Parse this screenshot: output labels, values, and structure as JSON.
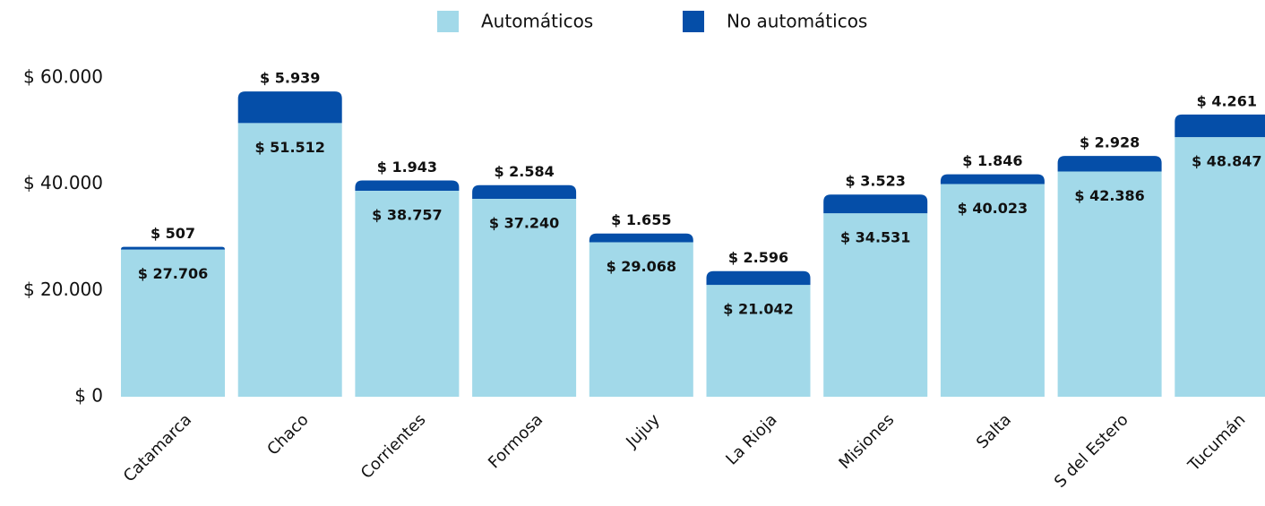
{
  "chart_data": {
    "type": "stacked_bar",
    "categories": [
      "Catamarca",
      "Chaco",
      "Corrientes",
      "Formosa",
      "Jujuy",
      "La Rioja",
      "Misiones",
      "Salta",
      "S del Estero",
      "Tucumán"
    ],
    "series": [
      {
        "name": "Automáticos",
        "color": "#a2d9e9",
        "values": [
          27706,
          51512,
          38757,
          37240,
          29068,
          21042,
          34531,
          40023,
          42386,
          48847
        ],
        "value_labels": [
          "$ 27.706",
          "$ 51.512",
          "$ 38.757",
          "$ 37.240",
          "$ 29.068",
          "$ 21.042",
          "$ 34.531",
          "$ 40.023",
          "$ 42.386",
          "$ 48.847"
        ]
      },
      {
        "name": "No automáticos",
        "color": "#054ea8",
        "values": [
          507,
          5939,
          1943,
          2584,
          1655,
          2596,
          3523,
          1846,
          2928,
          4261
        ],
        "value_labels": [
          "$ 507",
          "$ 5.939",
          "$ 1.943",
          "$ 2.584",
          "$ 1.655",
          "$ 2.596",
          "$ 3.523",
          "$ 1.846",
          "$ 2.928",
          "$ 4.261"
        ]
      }
    ],
    "ylim": [
      0,
      60000
    ],
    "yticks": [
      {
        "value": 0,
        "label": "$ 0"
      },
      {
        "value": 20000,
        "label": "$ 20.000"
      },
      {
        "value": 40000,
        "label": "$ 40.000"
      },
      {
        "value": 60000,
        "label": "$ 60.000"
      }
    ],
    "grid": false,
    "legend": "top"
  }
}
